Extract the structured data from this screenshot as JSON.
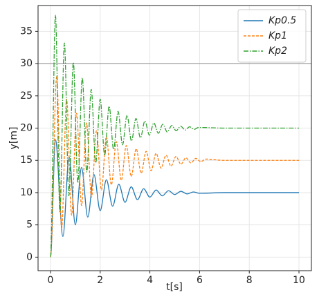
{
  "chart_data": {
    "type": "line",
    "x_label": "t[s]",
    "y_label": "y[m]",
    "xlim": [
      -0.5,
      10.5
    ],
    "ylim": [
      -2.1,
      39
    ],
    "xticks": [
      0,
      2,
      4,
      6,
      8,
      10
    ],
    "yticks": [
      0,
      5,
      10,
      15,
      20,
      25,
      30,
      35
    ],
    "grid": true,
    "hline": 30,
    "hline_color": "#888888",
    "legend": "upper right",
    "series": [
      {
        "name": "Kp0.5",
        "color": "#1f77b4",
        "dash": "solid",
        "x": [
          0,
          0.2,
          0.5,
          0.75,
          1.0,
          1.25,
          1.5,
          1.75,
          2.0,
          2.25,
          2.5,
          2.75,
          3.0,
          3.25,
          3.5,
          3.75,
          4.0,
          4.25,
          4.5,
          4.75,
          5.0,
          5.25,
          5.5,
          5.75,
          6.0,
          7,
          10
        ],
        "values": [
          0,
          18.2,
          3.2,
          15.6,
          5.0,
          13.9,
          6.2,
          12.8,
          7.2,
          12.0,
          7.9,
          11.3,
          8.5,
          10.9,
          8.9,
          10.6,
          9.3,
          10.4,
          9.5,
          10.3,
          9.7,
          10.2,
          9.8,
          10.1,
          9.9,
          10,
          10
        ]
      },
      {
        "name": "Kp1",
        "color": "#ff7f0e",
        "dash": "dashed",
        "x": [
          0,
          0.25,
          0.45,
          0.65,
          0.85,
          1.05,
          1.25,
          1.45,
          1.65,
          1.85,
          2.05,
          2.25,
          2.45,
          2.65,
          2.85,
          3.05,
          3.25,
          3.45,
          3.65,
          3.85,
          4.05,
          4.25,
          4.45,
          4.65,
          4.85,
          5.05,
          5.25,
          5.45,
          5.65,
          5.85,
          6.05,
          6.25,
          7,
          10
        ],
        "values": [
          0,
          28,
          4.5,
          24.5,
          6.5,
          22.3,
          8.0,
          20.8,
          9.3,
          19.6,
          10.4,
          18.7,
          11.2,
          17.9,
          11.9,
          17.3,
          12.5,
          16.8,
          13.0,
          16.4,
          13.4,
          16.1,
          13.8,
          15.8,
          14.1,
          15.6,
          14.4,
          15.4,
          14.6,
          15.3,
          14.8,
          15.2,
          15,
          15
        ]
      },
      {
        "name": "Kp2",
        "color": "#2ca02c",
        "dash": "dashdot",
        "x": [
          0,
          0.2,
          0.38,
          0.56,
          0.74,
          0.92,
          1.1,
          1.28,
          1.46,
          1.64,
          1.82,
          2.0,
          2.18,
          2.36,
          2.54,
          2.72,
          2.9,
          3.08,
          3.26,
          3.44,
          3.62,
          3.8,
          3.98,
          4.16,
          4.34,
          4.52,
          4.7,
          4.88,
          5.06,
          5.24,
          5.42,
          5.6,
          5.78,
          5.96,
          7,
          10
        ],
        "values": [
          0,
          37.5,
          7,
          33.2,
          9.5,
          30.2,
          11.5,
          27.8,
          13.2,
          26.0,
          14.6,
          24.5,
          15.8,
          23.4,
          16.7,
          22.6,
          17.4,
          22.0,
          18.0,
          21.5,
          18.5,
          21.1,
          18.9,
          20.8,
          19.2,
          20.6,
          19.4,
          20.4,
          19.6,
          20.3,
          19.7,
          20.2,
          19.8,
          20.1,
          20,
          20
        ]
      }
    ]
  }
}
